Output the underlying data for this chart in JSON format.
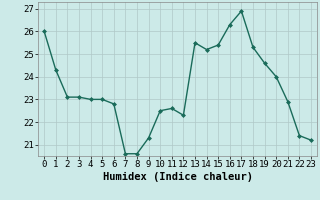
{
  "x": [
    0,
    1,
    2,
    3,
    4,
    5,
    6,
    7,
    8,
    9,
    10,
    11,
    12,
    13,
    14,
    15,
    16,
    17,
    18,
    19,
    20,
    21,
    22,
    23
  ],
  "y": [
    26.0,
    24.3,
    23.1,
    23.1,
    23.0,
    23.0,
    22.8,
    20.6,
    20.6,
    21.3,
    22.5,
    22.6,
    22.3,
    25.5,
    25.2,
    25.4,
    26.3,
    26.9,
    25.3,
    24.6,
    24.0,
    22.9,
    21.4,
    21.2
  ],
  "line_color": "#1a6b5a",
  "marker": "D",
  "marker_size": 2,
  "bg_color": "#cceae8",
  "grid_color": "#b0c8c8",
  "xlabel": "Humidex (Indice chaleur)",
  "ylim": [
    20.5,
    27.3
  ],
  "xlim": [
    -0.5,
    23.5
  ],
  "yticks": [
    21,
    22,
    23,
    24,
    25,
    26,
    27
  ],
  "xtick_labels": [
    "0",
    "1",
    "2",
    "3",
    "4",
    "5",
    "6",
    "7",
    "8",
    "9",
    "10",
    "11",
    "12",
    "13",
    "14",
    "15",
    "16",
    "17",
    "18",
    "19",
    "20",
    "21",
    "22",
    "23"
  ],
  "tick_fontsize": 6.5,
  "xlabel_fontsize": 7.5,
  "line_width": 1.0
}
